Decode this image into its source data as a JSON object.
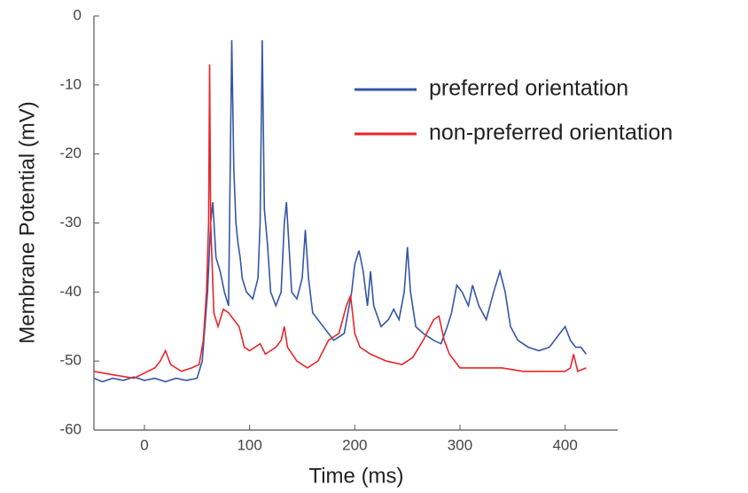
{
  "chart_data": {
    "type": "line",
    "xlabel": "Time (ms)",
    "ylabel": "Membrane Potential (mV)",
    "xlim": [
      -48,
      450
    ],
    "ylim": [
      -60,
      0
    ],
    "xticks": [
      0,
      100,
      200,
      300,
      400
    ],
    "yticks": [
      0,
      -10,
      -20,
      -30,
      -40,
      -50,
      -60
    ],
    "legend": "upper right",
    "series": [
      {
        "name": "preferred orientation",
        "color": "#3556a6",
        "x": [
          -48,
          -40,
          -30,
          -20,
          -10,
          0,
          10,
          20,
          30,
          40,
          50,
          55,
          60,
          63,
          65,
          68,
          72,
          76,
          80,
          83,
          85,
          87,
          89,
          91,
          93,
          97,
          103,
          108,
          110,
          112,
          114,
          117,
          120,
          125,
          130,
          133,
          135,
          137,
          140,
          145,
          150,
          153,
          156,
          160,
          170,
          180,
          190,
          197,
          200,
          204,
          208,
          212,
          215,
          218,
          225,
          232,
          237,
          242,
          247,
          250,
          253,
          258,
          265,
          275,
          282,
          288,
          292,
          297,
          302,
          308,
          312,
          318,
          325,
          332,
          338,
          343,
          348,
          355,
          365,
          375,
          385,
          395,
          400,
          405,
          410,
          415,
          420
        ],
        "values": [
          -52.5,
          -53,
          -52.5,
          -52.8,
          -52.3,
          -52.8,
          -52.5,
          -53,
          -52.5,
          -52.8,
          -52.5,
          -50,
          -40,
          -30,
          -27,
          -35,
          -37,
          -40,
          -42,
          -3.5,
          -22,
          -30,
          -33,
          -35,
          -38,
          -40,
          -41,
          -38,
          -30,
          -3.5,
          -28,
          -33,
          -40,
          -42,
          -40,
          -30,
          -27,
          -32,
          -40,
          -41,
          -38,
          -31,
          -38,
          -43,
          -45,
          -47,
          -46,
          -40,
          -36,
          -34,
          -37,
          -42,
          -37,
          -42,
          -45,
          -44,
          -42.5,
          -44,
          -40,
          -33.5,
          -40,
          -45,
          -46,
          -47,
          -47.5,
          -45,
          -43,
          -39,
          -40,
          -42,
          -39,
          -42,
          -44,
          -40,
          -37,
          -40,
          -45,
          -47,
          -48,
          -48.5,
          -48,
          -46,
          -45,
          -47,
          -48,
          -48,
          -49
        ]
      },
      {
        "name": "non-preferred orientation",
        "color": "#e8262a",
        "x": [
          -48,
          -30,
          -10,
          10,
          15,
          20,
          25,
          35,
          45,
          52,
          56,
          59,
          61,
          62,
          63,
          66,
          70,
          75,
          80,
          85,
          90,
          95,
          100,
          110,
          115,
          120,
          125,
          130,
          133,
          136,
          145,
          155,
          165,
          175,
          185,
          192,
          196,
          200,
          205,
          215,
          230,
          245,
          255,
          265,
          275,
          280,
          285,
          290,
          300,
          320,
          340,
          360,
          380,
          400,
          405,
          408,
          412,
          420
        ],
        "values": [
          -51.5,
          -52,
          -52.5,
          -51,
          -50,
          -48.5,
          -50.5,
          -51.5,
          -51,
          -50.5,
          -47,
          -40,
          -30,
          -7,
          -30,
          -43,
          -45,
          -42.5,
          -43,
          -44,
          -45,
          -48,
          -48.5,
          -47.5,
          -49,
          -48.5,
          -48,
          -47,
          -45,
          -48,
          -50,
          -51,
          -50,
          -47,
          -46,
          -42,
          -40.5,
          -46,
          -48,
          -49,
          -50,
          -50.5,
          -49.5,
          -47,
          -44,
          -43.5,
          -47,
          -49,
          -51,
          -51,
          -51,
          -51.5,
          -51.5,
          -51.5,
          -51,
          -49,
          -51.5,
          -51
        ]
      }
    ]
  }
}
